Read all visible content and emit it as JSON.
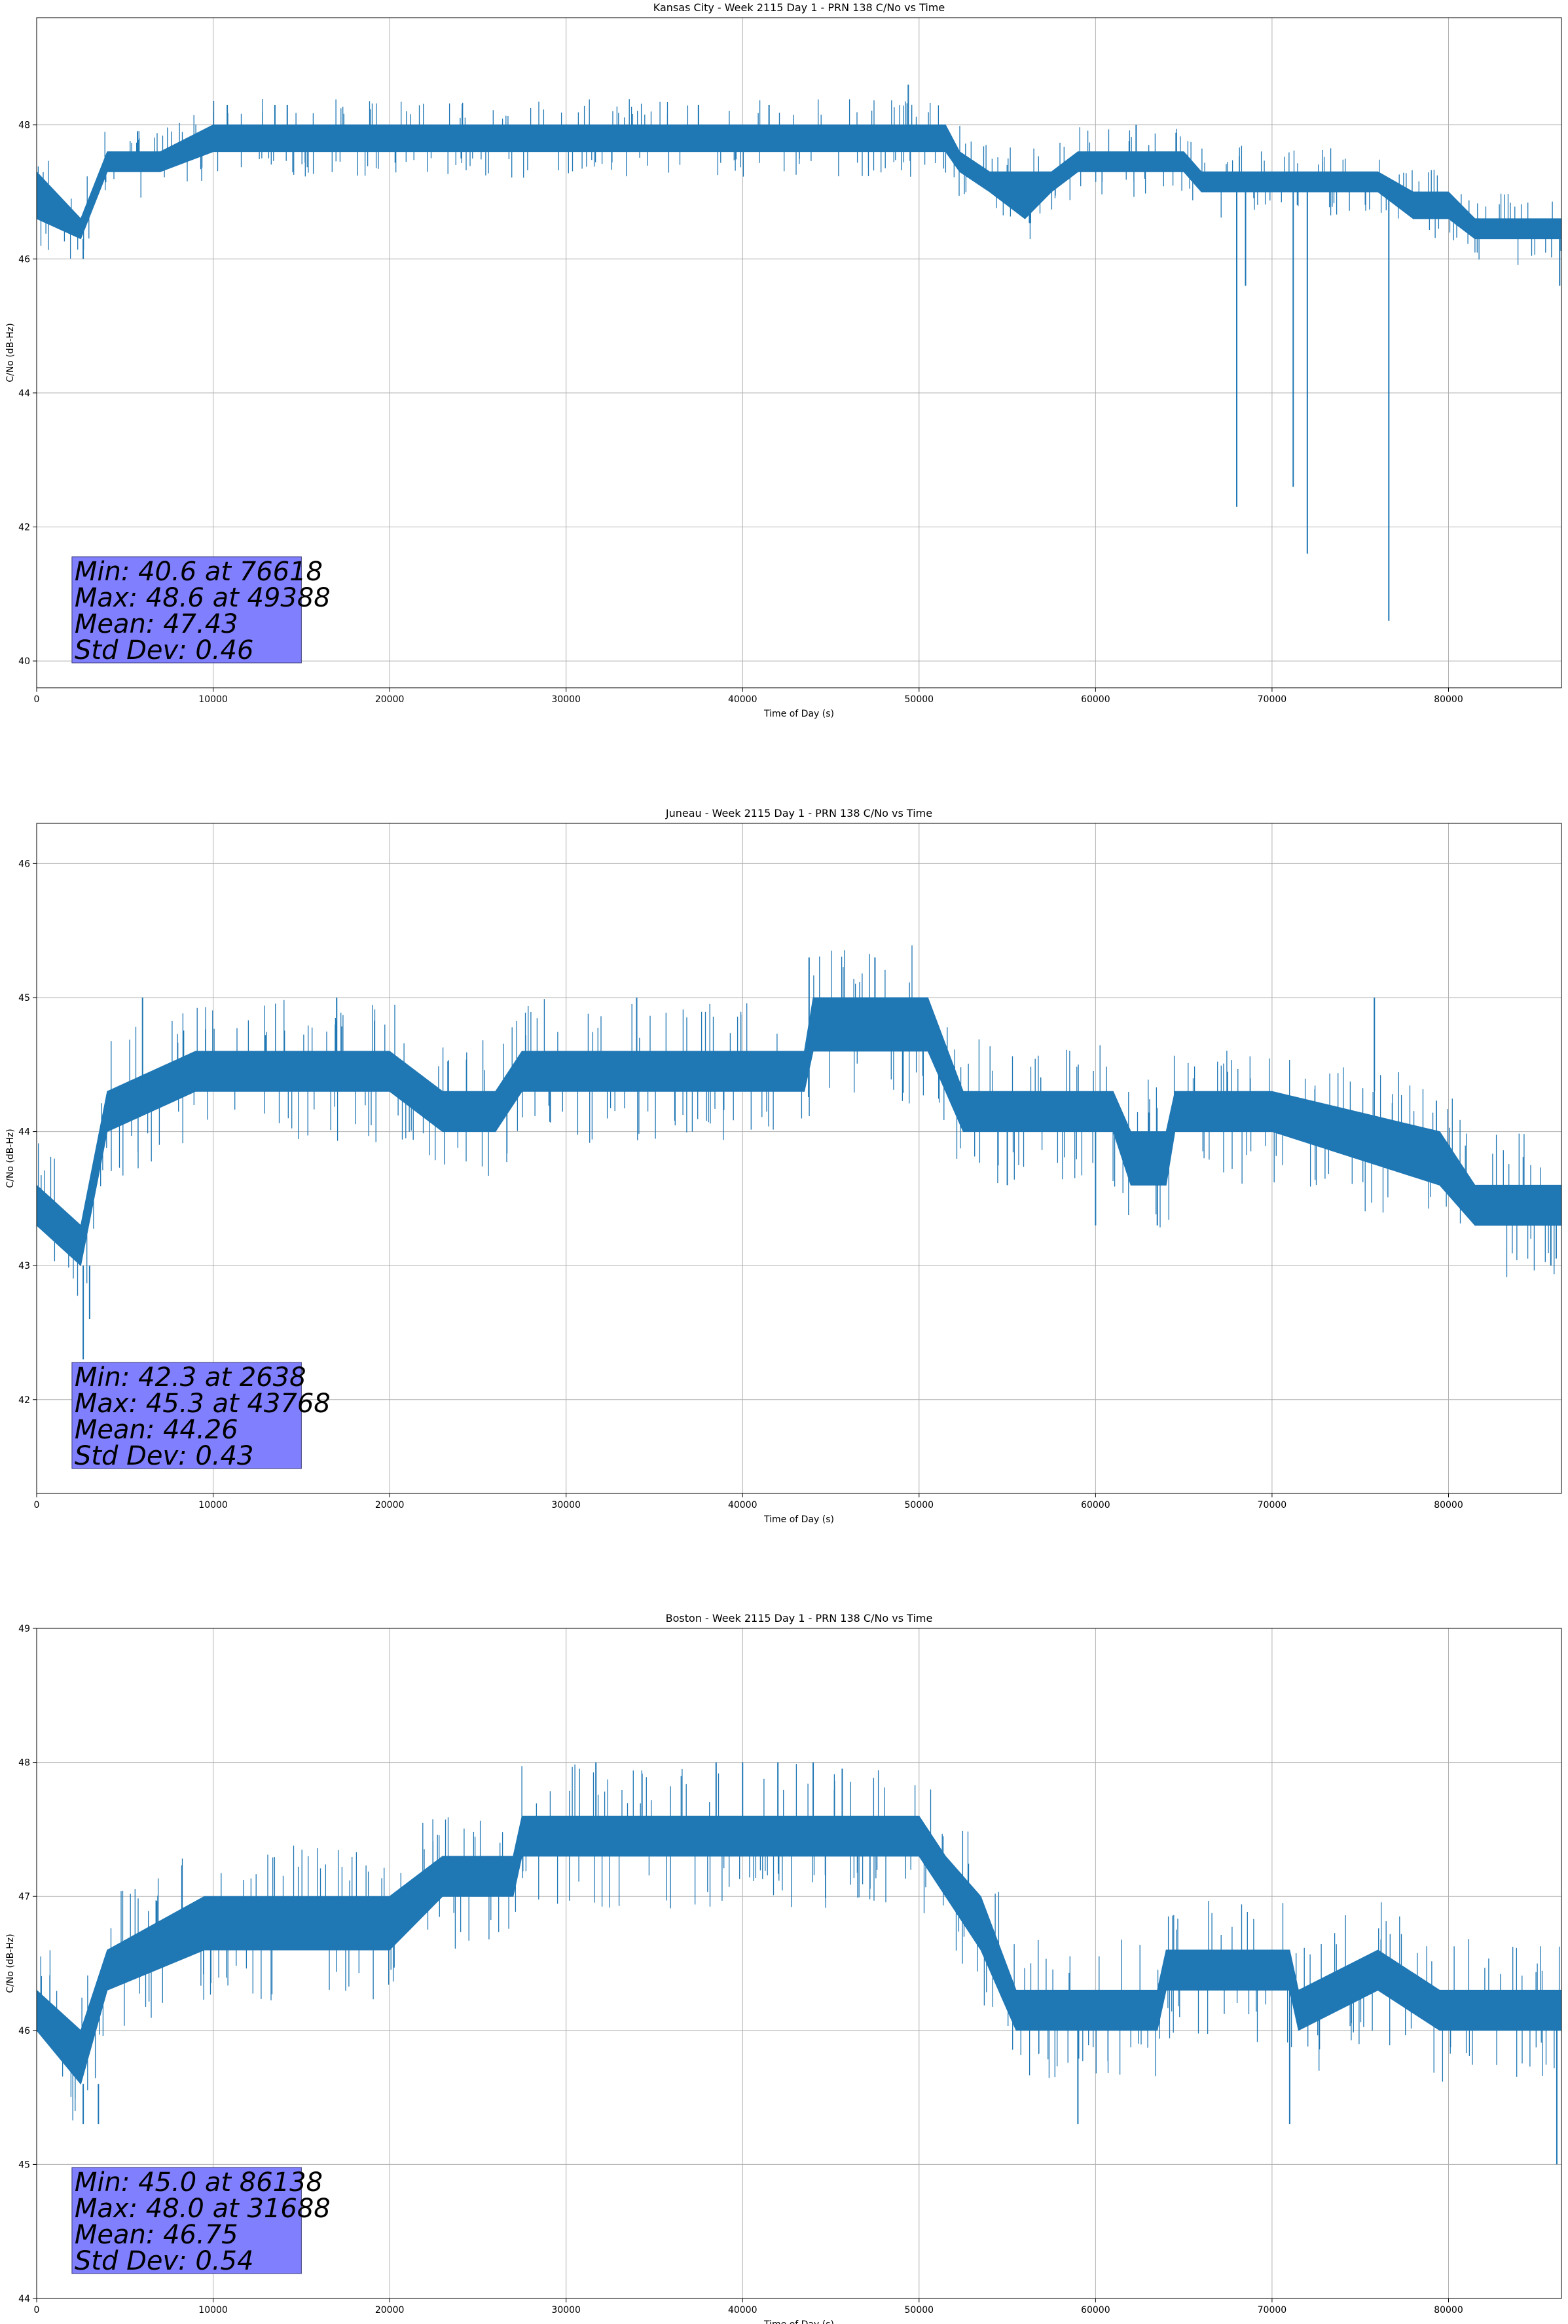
{
  "chart_data": [
    {
      "type": "line",
      "title": "Kansas City - Week 2115 Day 1 - PRN 138 C/No vs Time",
      "xlabel": "Time of Day (s)",
      "ylabel": "C/No (dB-Hz)",
      "xlim": [
        0,
        86400
      ],
      "ylim": [
        39.6,
        49.6
      ],
      "xticks": [
        "0",
        "10000",
        "20000",
        "30000",
        "40000",
        "50000",
        "60000",
        "70000",
        "80000"
      ],
      "yticks": [
        "40",
        "42",
        "44",
        "46",
        "48"
      ],
      "grid": true,
      "color": "#1f77b4",
      "stats": [
        "Min: 40.6 at 76618",
        "Max: 48.6 at 49388",
        "Mean: 47.43",
        "Std Dev: 0.46"
      ],
      "band": [
        [
          0,
          46.6,
          47.3
        ],
        [
          2500,
          46.3,
          46.6
        ],
        [
          4000,
          47.3,
          47.6
        ],
        [
          7000,
          47.3,
          47.6
        ],
        [
          10000,
          47.6,
          48.0
        ],
        [
          20000,
          47.6,
          48.0
        ],
        [
          30000,
          47.6,
          48.0
        ],
        [
          40000,
          47.6,
          48.0
        ],
        [
          50000,
          47.6,
          48.0
        ],
        [
          51500,
          47.6,
          48.0
        ],
        [
          52300,
          47.3,
          47.6
        ],
        [
          54000,
          47.0,
          47.3
        ],
        [
          56000,
          46.6,
          47.3
        ],
        [
          57500,
          47.0,
          47.3
        ],
        [
          59000,
          47.3,
          47.6
        ],
        [
          61000,
          47.3,
          47.6
        ],
        [
          63000,
          47.3,
          47.6
        ],
        [
          65000,
          47.3,
          47.6
        ],
        [
          66000,
          47.0,
          47.3
        ],
        [
          70000,
          47.0,
          47.3
        ],
        [
          73000,
          47.0,
          47.3
        ],
        [
          76000,
          47.0,
          47.3
        ],
        [
          78000,
          46.6,
          47.0
        ],
        [
          80000,
          46.6,
          47.0
        ],
        [
          81500,
          46.3,
          46.6
        ],
        [
          86400,
          46.3,
          46.6
        ]
      ],
      "spikes": [
        [
          2638,
          46.0
        ],
        [
          10800,
          48.3
        ],
        [
          13500,
          48.3
        ],
        [
          14200,
          48.3
        ],
        [
          37500,
          48.3
        ],
        [
          41500,
          48.3
        ],
        [
          49388,
          48.6
        ],
        [
          62300,
          48.0
        ],
        [
          68000,
          42.3
        ],
        [
          68500,
          45.6
        ],
        [
          71200,
          42.6
        ],
        [
          72000,
          41.6
        ],
        [
          76618,
          40.6
        ],
        [
          86300,
          45.6
        ]
      ]
    },
    {
      "type": "line",
      "title": "Juneau - Week 2115 Day 1 - PRN 138 C/No vs Time",
      "xlabel": "Time of Day (s)",
      "ylabel": "C/No (dB-Hz)",
      "xlim": [
        0,
        86400
      ],
      "ylim": [
        41.3,
        46.3
      ],
      "xticks": [
        "0",
        "10000",
        "20000",
        "30000",
        "40000",
        "50000",
        "60000",
        "70000",
        "80000"
      ],
      "yticks": [
        "42",
        "43",
        "44",
        "45",
        "46"
      ],
      "grid": true,
      "color": "#1f77b4",
      "stats": [
        "Min: 42.3 at 2638",
        "Max: 45.3 at 43768",
        "Mean: 44.26",
        "Std Dev: 0.43"
      ],
      "band": [
        [
          0,
          43.3,
          43.6
        ],
        [
          2500,
          43.0,
          43.3
        ],
        [
          4000,
          44.0,
          44.3
        ],
        [
          9000,
          44.3,
          44.6
        ],
        [
          20000,
          44.3,
          44.6
        ],
        [
          23000,
          44.0,
          44.3
        ],
        [
          26000,
          44.0,
          44.3
        ],
        [
          27500,
          44.3,
          44.6
        ],
        [
          35000,
          44.3,
          44.6
        ],
        [
          43500,
          44.3,
          44.6
        ],
        [
          44000,
          44.6,
          45.0
        ],
        [
          50500,
          44.6,
          45.0
        ],
        [
          52500,
          44.0,
          44.3
        ],
        [
          61000,
          44.0,
          44.3
        ],
        [
          62000,
          43.6,
          44.0
        ],
        [
          64000,
          43.6,
          44.0
        ],
        [
          64500,
          44.0,
          44.3
        ],
        [
          70000,
          44.0,
          44.3
        ],
        [
          79500,
          43.6,
          44.0
        ],
        [
          81500,
          43.3,
          43.6
        ],
        [
          86400,
          43.3,
          43.6
        ]
      ],
      "spikes": [
        [
          2638,
          42.3
        ],
        [
          3000,
          42.6
        ],
        [
          6000,
          45.0
        ],
        [
          17000,
          45.0
        ],
        [
          34000,
          45.0
        ],
        [
          43768,
          45.3
        ],
        [
          47500,
          45.3
        ],
        [
          51000,
          45.0
        ],
        [
          55000,
          43.6
        ],
        [
          60000,
          43.3
        ],
        [
          63500,
          43.3
        ],
        [
          75800,
          45.0
        ],
        [
          85800,
          43.0
        ]
      ]
    },
    {
      "type": "line",
      "title": "Boston - Week 2115 Day 1 - PRN 138 C/No vs Time",
      "xlabel": "Time of Day (s)",
      "ylabel": "C/No (dB-Hz)",
      "xlim": [
        0,
        86400
      ],
      "ylim": [
        44.0,
        49.0
      ],
      "xticks": [
        "0",
        "10000",
        "20000",
        "30000",
        "40000",
        "50000",
        "60000",
        "70000",
        "80000"
      ],
      "yticks": [
        "44",
        "45",
        "46",
        "47",
        "48",
        "49"
      ],
      "grid": true,
      "color": "#1f77b4",
      "stats": [
        "Min: 45.0 at 86138",
        "Max: 48.0 at 31688",
        "Mean: 46.75",
        "Std Dev: 0.54"
      ],
      "band": [
        [
          0,
          46.0,
          46.3
        ],
        [
          2500,
          45.6,
          46.0
        ],
        [
          4000,
          46.3,
          46.6
        ],
        [
          9500,
          46.6,
          47.0
        ],
        [
          20000,
          46.6,
          47.0
        ],
        [
          23000,
          47.0,
          47.3
        ],
        [
          27000,
          47.0,
          47.3
        ],
        [
          27500,
          47.3,
          47.6
        ],
        [
          50000,
          47.3,
          47.6
        ],
        [
          51500,
          47.0,
          47.3
        ],
        [
          53500,
          46.6,
          47.0
        ],
        [
          55500,
          46.0,
          46.3
        ],
        [
          63500,
          46.0,
          46.3
        ],
        [
          64000,
          46.3,
          46.6
        ],
        [
          71000,
          46.3,
          46.6
        ],
        [
          71500,
          46.0,
          46.3
        ],
        [
          76000,
          46.3,
          46.6
        ],
        [
          79500,
          46.0,
          46.3
        ],
        [
          86400,
          46.0,
          46.3
        ]
      ],
      "spikes": [
        [
          2638,
          45.3
        ],
        [
          3500,
          45.3
        ],
        [
          31688,
          48.0
        ],
        [
          38500,
          48.0
        ],
        [
          40000,
          48.0
        ],
        [
          42000,
          48.0
        ],
        [
          44000,
          48.0
        ],
        [
          59000,
          45.3
        ],
        [
          71000,
          45.3
        ],
        [
          86138,
          45.0
        ]
      ]
    }
  ]
}
